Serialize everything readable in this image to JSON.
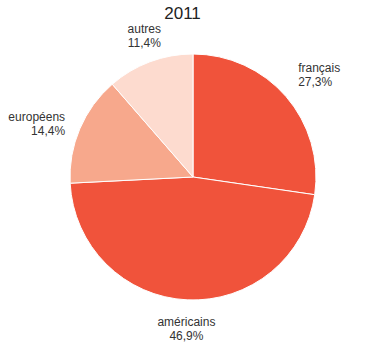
{
  "chart_data": {
    "type": "pie",
    "title": "2011",
    "categories": [
      "français",
      "américains",
      "européens",
      "autres"
    ],
    "values": [
      27.3,
      46.9,
      14.4,
      11.4
    ],
    "value_labels": [
      "27,3%",
      "46,9%",
      "14,4%",
      "11,4%"
    ],
    "colors": [
      "#f0533b",
      "#f0533b",
      "#f7a88c",
      "#fddbcf"
    ],
    "data_labels": true
  }
}
